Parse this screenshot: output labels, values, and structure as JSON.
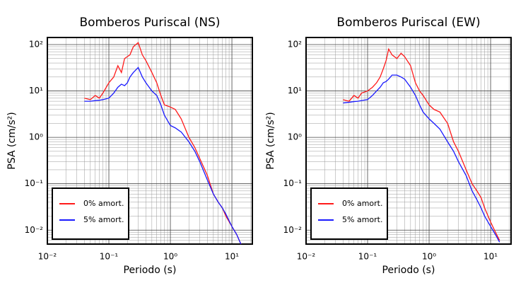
{
  "chart_data": [
    {
      "type": "line",
      "title": "Bomberos Puriscal (NS)",
      "xlabel": "Periodo (s)",
      "ylabel": "PSA (cm/s²)",
      "xscale": "log",
      "yscale": "log",
      "grid": true,
      "minor_grid": true,
      "legend": "lower left",
      "xlim": [
        0.01,
        21.5
      ],
      "ylim": [
        0.005,
        142
      ],
      "xticks": [
        {
          "value": 0.01,
          "label": "10⁻²"
        },
        {
          "value": 0.1,
          "label": "10⁻¹"
        },
        {
          "value": 1,
          "label": "10⁰"
        },
        {
          "value": 10,
          "label": "10¹"
        }
      ],
      "yticks": [
        {
          "value": 0.01,
          "label": "10⁻²"
        },
        {
          "value": 0.1,
          "label": "10⁻¹"
        },
        {
          "value": 1,
          "label": "10⁰"
        },
        {
          "value": 10,
          "label": "10¹"
        },
        {
          "value": 100,
          "label": "10²"
        }
      ],
      "x": [
        0.04,
        0.05,
        0.06,
        0.07,
        0.08,
        0.1,
        0.12,
        0.14,
        0.16,
        0.18,
        0.2,
        0.22,
        0.25,
        0.3,
        0.35,
        0.4,
        0.5,
        0.6,
        0.7,
        0.8,
        1.0,
        1.2,
        1.5,
        2,
        2.5,
        3,
        4,
        5,
        6,
        7,
        8,
        10,
        12,
        14
      ],
      "series": [
        {
          "name": "0% amort.",
          "color": "#ff1a1a",
          "values": [
            7,
            6.5,
            8,
            7,
            9,
            15,
            20,
            35,
            25,
            50,
            55,
            60,
            90,
            110,
            60,
            45,
            25,
            15,
            8,
            5,
            4.5,
            4,
            2.5,
            1,
            0.6,
            0.35,
            0.15,
            0.06,
            0.04,
            0.03,
            0.02,
            0.012,
            0.008,
            0.005
          ]
        },
        {
          "name": "5% amort.",
          "color": "#1a1aff",
          "values": [
            6,
            6,
            6.2,
            6.3,
            6.5,
            7,
            9,
            12,
            14,
            13,
            15,
            20,
            25,
            32,
            20,
            15,
            10,
            8,
            5,
            3,
            1.8,
            1.6,
            1.3,
            0.8,
            0.5,
            0.3,
            0.12,
            0.06,
            0.04,
            0.03,
            0.022,
            0.012,
            0.008,
            0.005
          ]
        }
      ]
    },
    {
      "type": "line",
      "title": "Bomberos Puriscal (EW)",
      "xlabel": "Periodo (s)",
      "ylabel": "PSA (cm/s²)",
      "xscale": "log",
      "yscale": "log",
      "grid": true,
      "minor_grid": true,
      "legend": "lower left",
      "xlim": [
        0.01,
        21.5
      ],
      "ylim": [
        0.005,
        142
      ],
      "xticks": [
        {
          "value": 0.01,
          "label": "10⁻²"
        },
        {
          "value": 0.1,
          "label": "10⁻¹"
        },
        {
          "value": 1,
          "label": "10⁰"
        },
        {
          "value": 10,
          "label": "10¹"
        }
      ],
      "yticks": [
        {
          "value": 0.01,
          "label": "10⁻²"
        },
        {
          "value": 0.1,
          "label": "10⁻¹"
        },
        {
          "value": 1,
          "label": "10⁰"
        },
        {
          "value": 10,
          "label": "10¹"
        },
        {
          "value": 100,
          "label": "10²"
        }
      ],
      "x": [
        0.04,
        0.05,
        0.06,
        0.07,
        0.08,
        0.1,
        0.12,
        0.14,
        0.16,
        0.18,
        0.2,
        0.22,
        0.25,
        0.3,
        0.35,
        0.4,
        0.5,
        0.6,
        0.7,
        0.8,
        1.0,
        1.2,
        1.5,
        2,
        2.5,
        3,
        4,
        5,
        6,
        7,
        8,
        10,
        12,
        14
      ],
      "series": [
        {
          "name": "0% amort.",
          "color": "#ff1a1a",
          "values": [
            6.5,
            6,
            8,
            7,
            9,
            10,
            12,
            15,
            20,
            30,
            45,
            80,
            60,
            50,
            65,
            55,
            35,
            15,
            10,
            8,
            5,
            4,
            3.5,
            2,
            0.8,
            0.5,
            0.2,
            0.1,
            0.07,
            0.05,
            0.03,
            0.015,
            0.009,
            0.006
          ]
        },
        {
          "name": "5% amort.",
          "color": "#1a1aff",
          "values": [
            5.5,
            5.7,
            5.9,
            6,
            6.2,
            6.5,
            8,
            10,
            12,
            15,
            16,
            18,
            22,
            22,
            20,
            18,
            12,
            8,
            5,
            3.5,
            2.5,
            2,
            1.5,
            0.8,
            0.5,
            0.3,
            0.15,
            0.07,
            0.045,
            0.03,
            0.02,
            0.012,
            0.008,
            0.0055
          ]
        }
      ]
    }
  ]
}
